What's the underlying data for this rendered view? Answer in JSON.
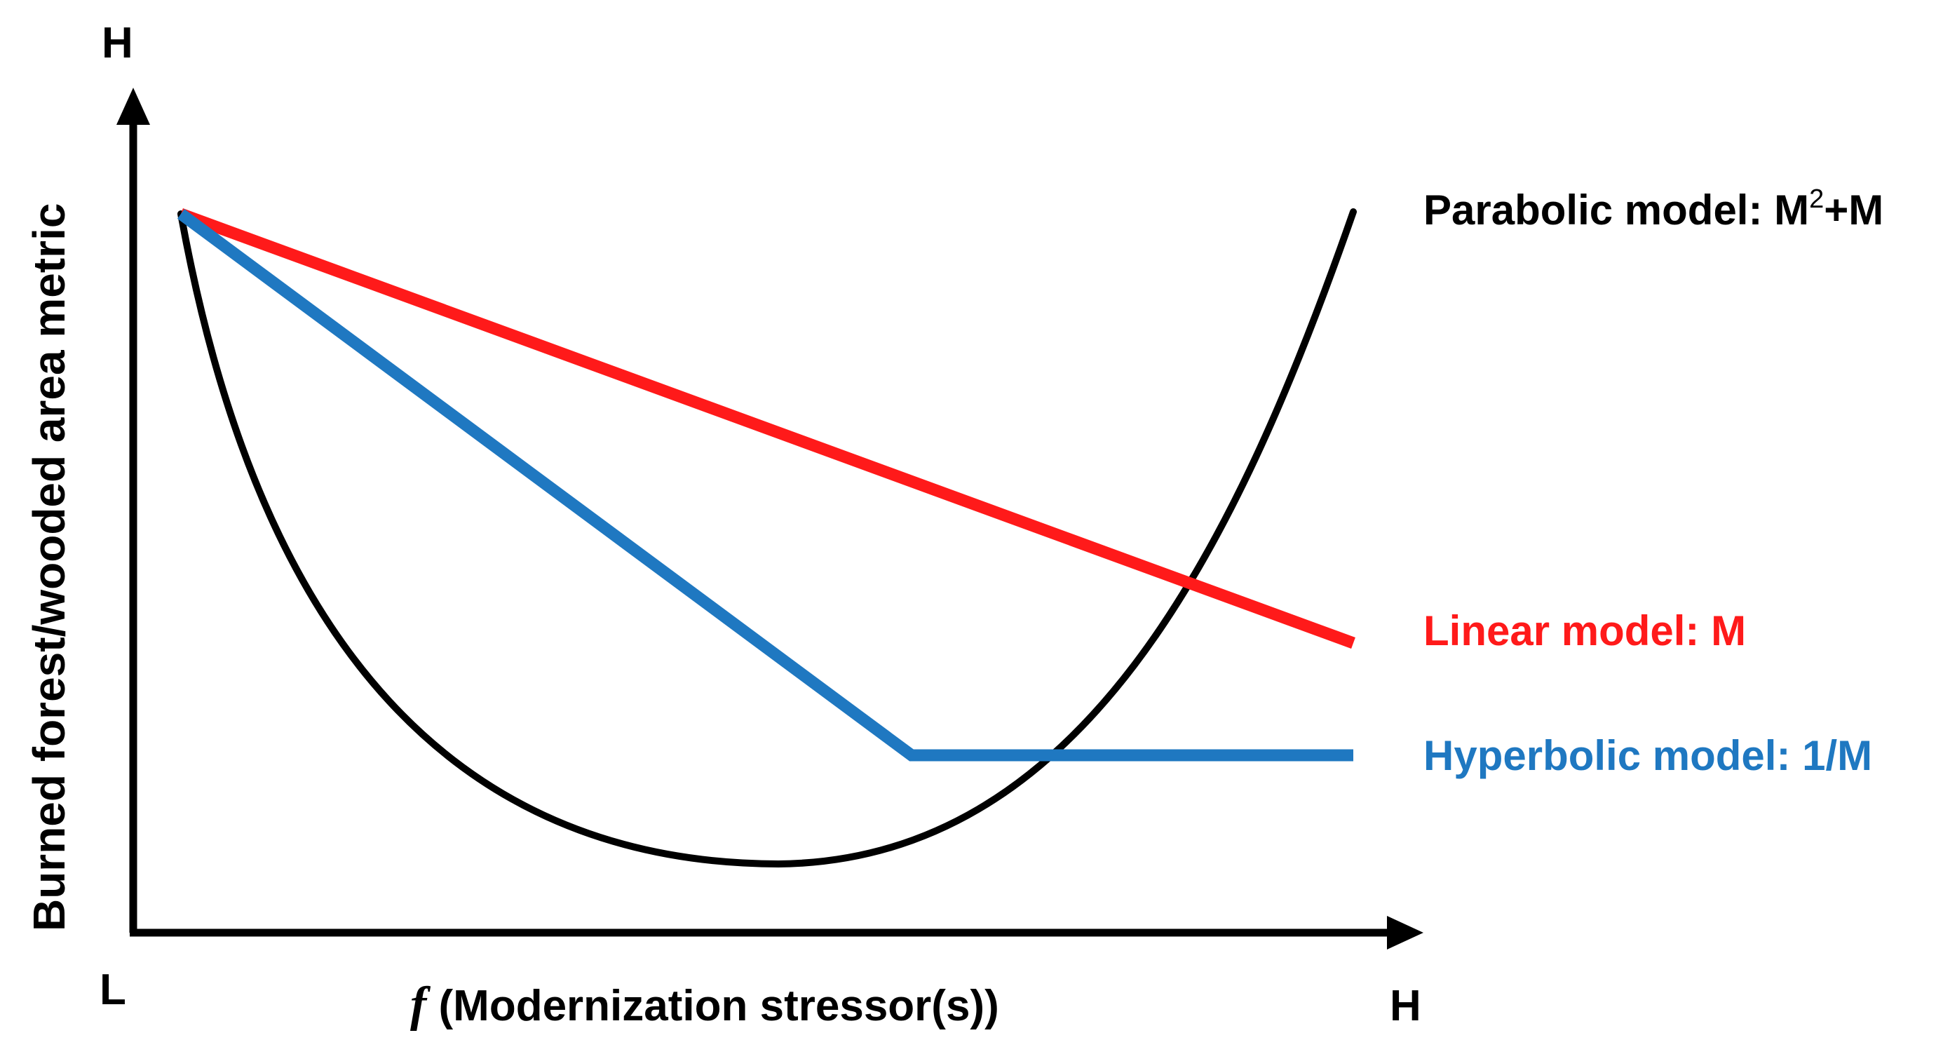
{
  "axes": {
    "y_title": "Burned forest/wooded area metric",
    "y_high_label": "H",
    "origin_label": "L",
    "x_high_label": "H",
    "x_title_function": "f",
    "x_title_rest": " (Modernization  stressor(s))"
  },
  "models": {
    "parabolic": {
      "label": "Parabolic model: M",
      "sup": "2",
      "label_tail": "+M",
      "color": "#000000"
    },
    "linear": {
      "label": "Linear model: M",
      "color": "#ff1a1a"
    },
    "hyperbolic": {
      "label": "Hyperbolic model: 1/M",
      "color": "#1f78c1"
    }
  },
  "colors": {
    "axis": "#000000",
    "background": "#ffffff"
  }
}
